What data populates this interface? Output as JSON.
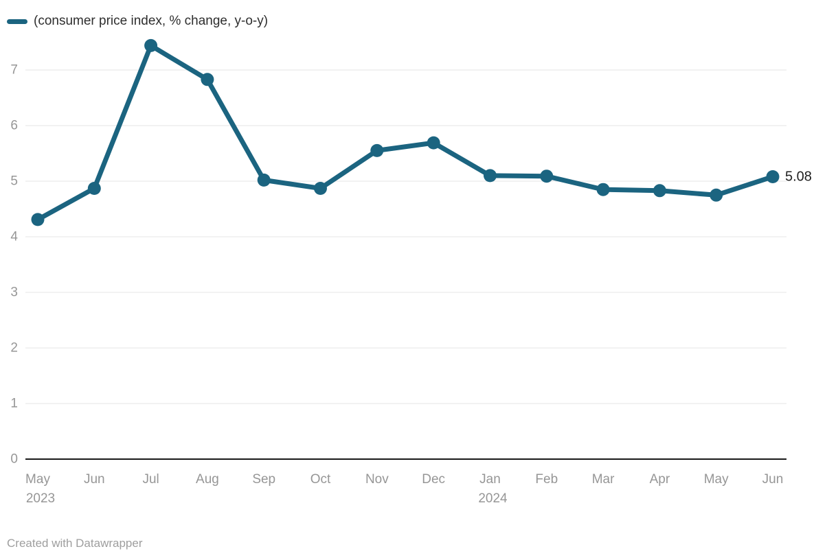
{
  "legend": {
    "label": "(consumer price index, % change, y-o-y)"
  },
  "footer": {
    "text": "Created with Datawrapper"
  },
  "chart_data": {
    "type": "line",
    "title": "",
    "xlabel": "",
    "ylabel": "",
    "x_ticks": [
      {
        "label": "May",
        "year": "2023"
      },
      {
        "label": "Jun"
      },
      {
        "label": "Jul"
      },
      {
        "label": "Aug"
      },
      {
        "label": "Sep"
      },
      {
        "label": "Oct"
      },
      {
        "label": "Nov"
      },
      {
        "label": "Dec"
      },
      {
        "label": "Jan",
        "year": "2024"
      },
      {
        "label": "Feb"
      },
      {
        "label": "Mar"
      },
      {
        "label": "Apr"
      },
      {
        "label": "May"
      },
      {
        "label": "Jun"
      }
    ],
    "series": [
      {
        "name": "(consumer price index, % change, y-o-y)",
        "values": [
          4.31,
          4.87,
          7.44,
          6.83,
          5.02,
          4.87,
          5.55,
          5.69,
          5.1,
          5.09,
          4.85,
          4.83,
          4.75,
          5.08
        ],
        "color": "#1b6480"
      }
    ],
    "end_label": "5.08",
    "ylim": [
      0,
      7
    ],
    "yticks": [
      0,
      1,
      2,
      3,
      4,
      5,
      6,
      7
    ],
    "grid": "horizontal",
    "legend_position": "top-left",
    "colors": {
      "line": "#1b6480",
      "gridline": "#e6e6e6",
      "axis_line": "#1a1a1a",
      "tick_label": "#969696",
      "end_label": "#1f1f1f"
    }
  }
}
